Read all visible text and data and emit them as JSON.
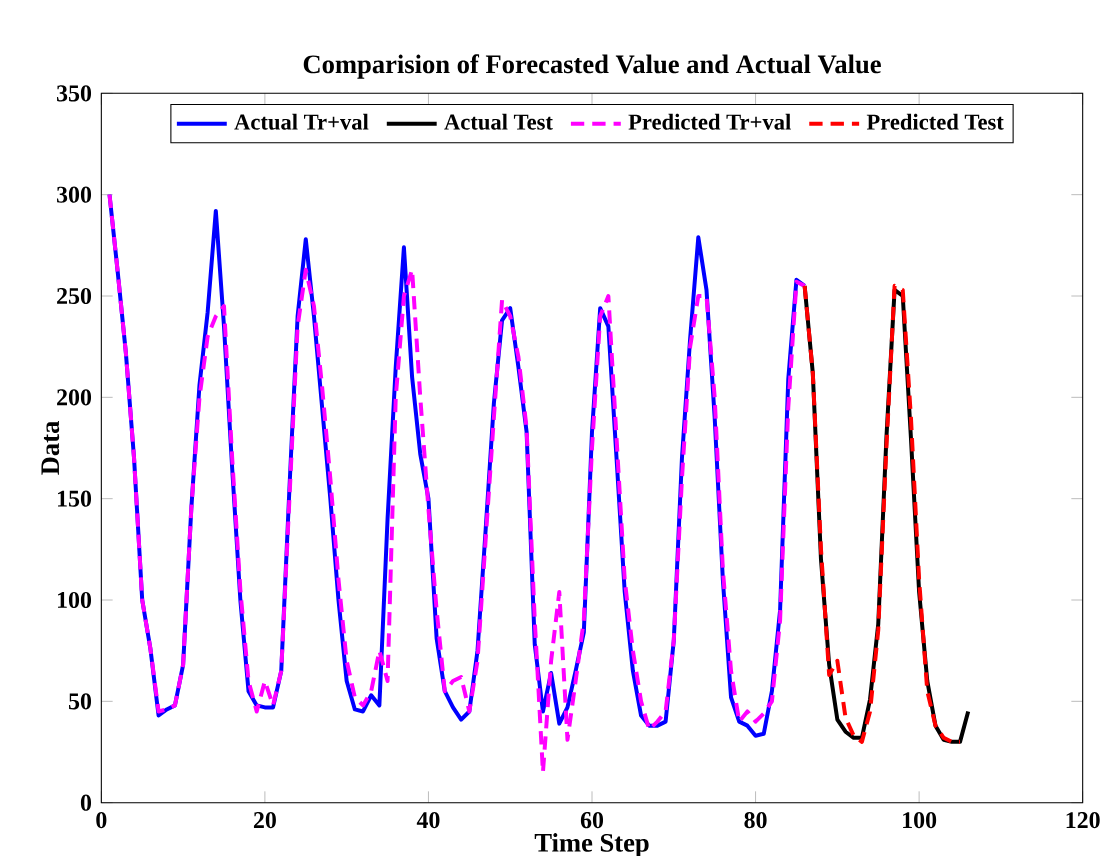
{
  "chart_data": {
    "type": "line",
    "title": "Comparision of Forecasted Value and Actual Value",
    "xlabel": "Time Step",
    "ylabel": "Data",
    "xlim": [
      0,
      120
    ],
    "xticks": [
      0,
      20,
      40,
      60,
      80,
      100,
      120
    ],
    "ylim": [
      0,
      350
    ],
    "yticks": [
      0,
      50,
      100,
      150,
      200,
      250,
      300,
      350
    ],
    "grid": false,
    "legend": "top",
    "marker": "none",
    "series": [
      {
        "name": "Actual Tr+val",
        "color": "#0000ff",
        "line_style": "solid",
        "x": [
          1,
          2,
          3,
          4,
          5,
          6,
          7,
          8,
          9,
          10,
          11,
          12,
          13,
          14,
          15,
          16,
          17,
          18,
          19,
          20,
          21,
          22,
          23,
          24,
          25,
          26,
          27,
          28,
          29,
          30,
          31,
          32,
          33,
          34,
          35,
          36,
          37,
          38,
          39,
          40,
          41,
          42,
          43,
          44,
          45,
          46,
          47,
          48,
          49,
          50,
          51,
          52,
          53,
          54,
          55,
          56,
          57,
          58,
          59,
          60,
          61,
          62,
          63,
          64,
          65,
          66,
          67,
          68,
          69,
          70,
          71,
          72,
          73,
          74,
          75,
          76,
          77,
          78,
          79,
          80,
          81,
          82,
          83,
          84,
          85,
          86
        ],
        "values": [
          300,
          262,
          222,
          170,
          100,
          76,
          43,
          46,
          48,
          68,
          145,
          206,
          242,
          292,
          235,
          165,
          100,
          55,
          48,
          47,
          47,
          65,
          155,
          240,
          278,
          240,
          195,
          150,
          100,
          60,
          46,
          45,
          53,
          48,
          140,
          215,
          274,
          210,
          172,
          150,
          81,
          55,
          47,
          41,
          45,
          75,
          135,
          197,
          238,
          244,
          215,
          183,
          78,
          45,
          64,
          39,
          47,
          65,
          84,
          183,
          244,
          235,
          170,
          104,
          65,
          43,
          38,
          38,
          40,
          80,
          170,
          229,
          279,
          253,
          190,
          110,
          52,
          40,
          38,
          33,
          34,
          55,
          95,
          209,
          258,
          255
        ]
      },
      {
        "name": "Actual Test",
        "color": "#000000",
        "line_style": "solid",
        "x": [
          86,
          87,
          88,
          89,
          90,
          91,
          92,
          93,
          94,
          95,
          96,
          97,
          98,
          99,
          100,
          101,
          102,
          103,
          104,
          105,
          106
        ],
        "values": [
          255,
          212,
          120,
          68,
          41,
          35,
          32,
          32,
          51,
          88,
          180,
          253,
          250,
          180,
          104,
          60,
          38,
          31,
          30,
          30,
          45
        ]
      },
      {
        "name": "Predicted Tr+val",
        "color": "#ff00ff",
        "line_style": "dashed",
        "x": [
          1,
          2,
          3,
          4,
          5,
          6,
          7,
          8,
          9,
          10,
          11,
          12,
          13,
          14,
          15,
          16,
          17,
          18,
          19,
          20,
          21,
          22,
          23,
          24,
          25,
          26,
          27,
          28,
          29,
          30,
          31,
          32,
          33,
          34,
          35,
          36,
          37,
          38,
          39,
          40,
          41,
          42,
          43,
          44,
          45,
          46,
          47,
          48,
          49,
          50,
          51,
          52,
          53,
          54,
          55,
          56,
          57,
          58,
          59,
          60,
          61,
          62,
          63,
          64,
          65,
          66,
          67,
          68,
          69,
          70,
          71,
          72,
          73,
          74,
          75,
          76,
          77,
          78,
          79,
          80,
          81,
          82,
          83,
          84,
          85,
          86
        ],
        "values": [
          300,
          262,
          222,
          170,
          100,
          76,
          45,
          46,
          48,
          68,
          145,
          200,
          230,
          240,
          245,
          170,
          105,
          60,
          45,
          60,
          48,
          65,
          150,
          235,
          263,
          245,
          205,
          160,
          110,
          70,
          52,
          48,
          55,
          75,
          60,
          200,
          250,
          263,
          200,
          145,
          95,
          55,
          60,
          62,
          45,
          70,
          130,
          190,
          248,
          240,
          220,
          185,
          90,
          15,
          70,
          104,
          31,
          60,
          90,
          175,
          240,
          250,
          180,
          110,
          75,
          50,
          36,
          40,
          45,
          80,
          160,
          225,
          250,
          250,
          200,
          115,
          65,
          40,
          45,
          40,
          44,
          50,
          90,
          195,
          257,
          255
        ]
      },
      {
        "name": "Predicted Test",
        "color": "#ff0000",
        "line_style": "dashed",
        "x": [
          86,
          87,
          88,
          89,
          90,
          91,
          92,
          93,
          94,
          95,
          96,
          97,
          98,
          99,
          100,
          101,
          102,
          103,
          104,
          105
        ],
        "values": [
          255,
          212,
          125,
          63,
          70,
          42,
          33,
          30,
          45,
          85,
          175,
          255,
          253,
          190,
          110,
          55,
          38,
          32,
          30,
          30
        ]
      }
    ]
  }
}
